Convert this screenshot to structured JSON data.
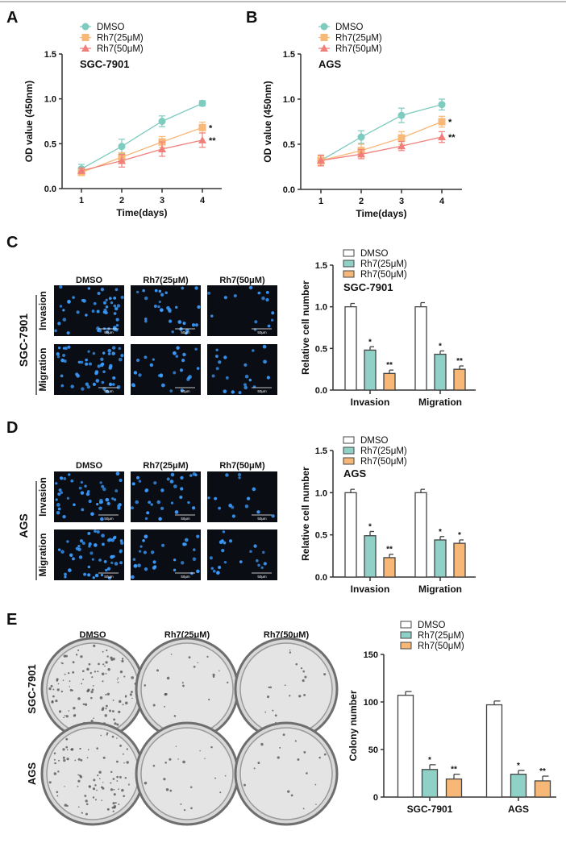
{
  "panel_letters": [
    "A",
    "B",
    "C",
    "D",
    "E"
  ],
  "colors": {
    "dmso": "#7ecbbf",
    "rh25": "#f8b878",
    "rh50": "#f07f7a",
    "bar_teal": "#8fd0c7",
    "bar_orange": "#f7b877",
    "axis": "#333333",
    "micro_bg": "#0a0d14",
    "nucleus": "#3a9cff"
  },
  "legend_labels": [
    "DMSO",
    "Rh7(25μM)",
    "Rh7(50μM)"
  ],
  "micrographs": {
    "col_headers": [
      "DMSO",
      "Rh7(25μM)",
      "Rh7(50μM)"
    ],
    "row_labels": [
      "Invasion",
      "Migration"
    ],
    "scale_bar": "50μm",
    "C_cell_line": "SGC-7901",
    "D_cell_line": "AGS"
  },
  "colony_images": {
    "col_headers": [
      "DMSO",
      "Rh7(25μM)",
      "Rh7(50μM)"
    ],
    "row_labels": [
      "SGC-7901",
      "AGS"
    ]
  },
  "chart_data": [
    {
      "id": "A",
      "type": "line",
      "title": "SGC-7901",
      "xlabel": "Time(days)",
      "ylabel": "OD value (450nm)",
      "x": [
        1,
        2,
        3,
        4
      ],
      "xticks": [
        "1",
        "2",
        "3",
        "4"
      ],
      "ylim": [
        0,
        1.5
      ],
      "yticks": [
        "0.0",
        "0.5",
        "1.0",
        "1.5"
      ],
      "grid": false,
      "legend": "top-left",
      "series": [
        {
          "name": "DMSO",
          "marker": "circle",
          "values": [
            0.22,
            0.47,
            0.75,
            0.95
          ],
          "errors": [
            0.05,
            0.08,
            0.06,
            0.03
          ],
          "annotation": ""
        },
        {
          "name": "Rh7(25μM)",
          "marker": "square",
          "values": [
            0.18,
            0.35,
            0.52,
            0.68
          ],
          "errors": [
            0.03,
            0.05,
            0.06,
            0.06
          ],
          "annotation": "*"
        },
        {
          "name": "Rh7(50μM)",
          "marker": "triangle",
          "values": [
            0.2,
            0.31,
            0.44,
            0.54
          ],
          "errors": [
            0.03,
            0.07,
            0.08,
            0.08
          ],
          "annotation": "**"
        }
      ]
    },
    {
      "id": "B",
      "type": "line",
      "title": "AGS",
      "xlabel": "Time(days)",
      "ylabel": "OD value (450nm)",
      "x": [
        1,
        2,
        3,
        4
      ],
      "xticks": [
        "1",
        "2",
        "3",
        "4"
      ],
      "ylim": [
        0,
        1.5
      ],
      "yticks": [
        "0.0",
        "0.5",
        "1.0",
        "1.5"
      ],
      "grid": false,
      "legend": "top-left",
      "series": [
        {
          "name": "DMSO",
          "marker": "circle",
          "values": [
            0.32,
            0.58,
            0.82,
            0.94
          ],
          "errors": [
            0.06,
            0.07,
            0.08,
            0.06
          ],
          "annotation": ""
        },
        {
          "name": "Rh7(25μM)",
          "marker": "square",
          "values": [
            0.32,
            0.43,
            0.57,
            0.75
          ],
          "errors": [
            0.05,
            0.07,
            0.07,
            0.06
          ],
          "annotation": "*"
        },
        {
          "name": "Rh7(50μM)",
          "marker": "triangle",
          "values": [
            0.32,
            0.39,
            0.48,
            0.58
          ],
          "errors": [
            0.06,
            0.05,
            0.05,
            0.06
          ],
          "annotation": "**"
        }
      ]
    },
    {
      "id": "C",
      "type": "bar",
      "title": "SGC-7901",
      "xlabel": "",
      "ylabel": "Relative cell number",
      "categories": [
        "Invasion",
        "Migration"
      ],
      "ylim": [
        0,
        1.5
      ],
      "yticks": [
        "0.0",
        "0.5",
        "1.0",
        "1.5"
      ],
      "grid": false,
      "legend": "top-left",
      "series": [
        {
          "name": "DMSO",
          "values": [
            1.0,
            1.0
          ],
          "errors": [
            0.04,
            0.05
          ],
          "annotations": [
            "",
            ""
          ]
        },
        {
          "name": "Rh7(25μM)",
          "values": [
            0.48,
            0.43
          ],
          "errors": [
            0.04,
            0.04
          ],
          "annotations": [
            "*",
            "*"
          ]
        },
        {
          "name": "Rh7(50μM)",
          "values": [
            0.2,
            0.25
          ],
          "errors": [
            0.04,
            0.04
          ],
          "annotations": [
            "**",
            "**"
          ]
        }
      ]
    },
    {
      "id": "D",
      "type": "bar",
      "title": "AGS",
      "xlabel": "",
      "ylabel": "Relative cell number",
      "categories": [
        "Invasion",
        "Migration"
      ],
      "ylim": [
        0,
        1.5
      ],
      "yticks": [
        "0.0",
        "0.5",
        "1.0",
        "1.5"
      ],
      "grid": false,
      "legend": "top-left",
      "series": [
        {
          "name": "DMSO",
          "values": [
            1.0,
            1.0
          ],
          "errors": [
            0.04,
            0.04
          ],
          "annotations": [
            "",
            ""
          ]
        },
        {
          "name": "Rh7(25μM)",
          "values": [
            0.49,
            0.44
          ],
          "errors": [
            0.05,
            0.04
          ],
          "annotations": [
            "*",
            "*"
          ]
        },
        {
          "name": "Rh7(50μM)",
          "values": [
            0.23,
            0.4
          ],
          "errors": [
            0.04,
            0.04
          ],
          "annotations": [
            "**",
            "*"
          ]
        }
      ]
    },
    {
      "id": "E",
      "type": "bar",
      "title": "",
      "xlabel": "",
      "ylabel": "Colony number",
      "categories": [
        "SGC-7901",
        "AGS"
      ],
      "ylim": [
        0,
        150
      ],
      "yticks": [
        "0",
        "50",
        "100",
        "150"
      ],
      "grid": false,
      "legend": "top-left",
      "series": [
        {
          "name": "DMSO",
          "values": [
            107,
            97
          ],
          "errors": [
            4,
            4
          ],
          "annotations": [
            "",
            ""
          ]
        },
        {
          "name": "Rh7(25μM)",
          "values": [
            29,
            24
          ],
          "errors": [
            5,
            4
          ],
          "annotations": [
            "*",
            "*"
          ]
        },
        {
          "name": "Rh7(50μM)",
          "values": [
            19,
            17
          ],
          "errors": [
            5,
            5
          ],
          "annotations": [
            "**",
            "**"
          ]
        }
      ]
    }
  ]
}
